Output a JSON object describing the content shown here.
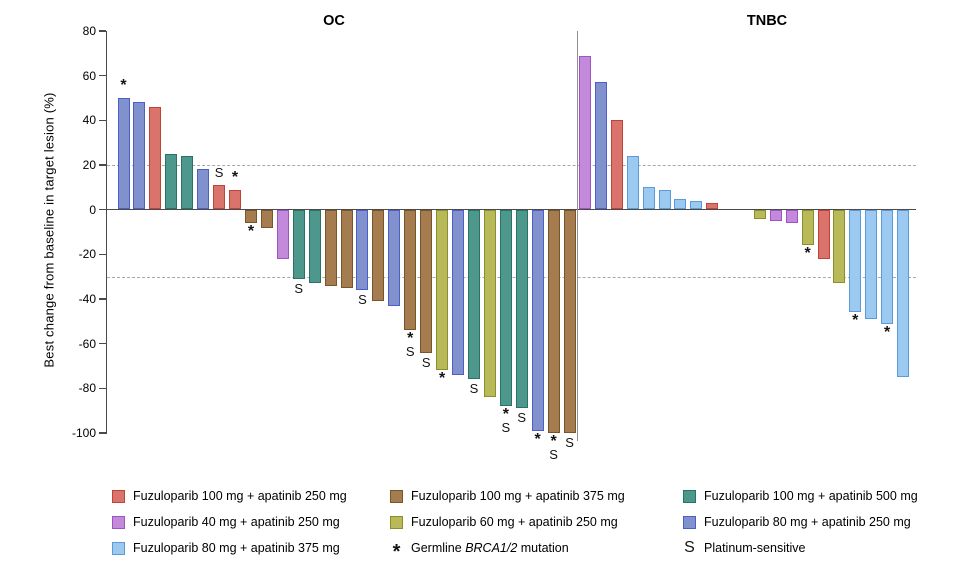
{
  "chart_data": {
    "type": "bar",
    "subtype": "waterfall",
    "title": "",
    "ylabel": "Best change from baseline in target lesion (%)",
    "ylim": [
      -100,
      80
    ],
    "yticks": [
      80,
      60,
      40,
      20,
      0,
      -20,
      -40,
      -60,
      -80,
      -100
    ],
    "reference_lines": [
      20,
      -30
    ],
    "grid": "off",
    "legend_position": "bottom",
    "groups": {
      "f100a250": {
        "label": "Fuzuloparib 100 mg + apatinib 250 mg",
        "fill": "#da736c",
        "border": "#bf4338"
      },
      "f100a375": {
        "label": "Fuzuloparib 100 mg + apatinib 375 mg",
        "fill": "#a57b50",
        "border": "#7a5527"
      },
      "f100a500": {
        "label": "Fuzuloparib 100 mg + apatinib 500 mg",
        "fill": "#4e978d",
        "border": "#2b7265"
      },
      "f40a250": {
        "label": "Fuzuloparib 40 mg + apatinib 250 mg",
        "fill": "#c389da",
        "border": "#9e54c2"
      },
      "f60a250": {
        "label": "Fuzuloparib 60 mg + apatinib 250 mg",
        "fill": "#b8b959",
        "border": "#8b8e2a"
      },
      "f80a250": {
        "label": "Fuzuloparib 80 mg + apatinib 250 mg",
        "fill": "#8091cd",
        "border": "#4d5ec6"
      },
      "f80a375": {
        "label": "Fuzuloparib 80 mg + apatinib 375 mg",
        "fill": "#9cc9ef",
        "border": "#5a9bd8"
      }
    },
    "marker_meanings": {
      "star": "Germline BRCA1/2 mutation",
      "S": "Platinum-sensitive"
    },
    "panels": [
      {
        "title": "OC",
        "bars": [
          {
            "value": 50,
            "group": "f80a250",
            "marks_above": [
              "*"
            ]
          },
          {
            "value": 48,
            "group": "f80a250"
          },
          {
            "value": 46,
            "group": "f100a250"
          },
          {
            "value": 25,
            "group": "f100a500"
          },
          {
            "value": 24,
            "group": "f100a500"
          },
          {
            "value": 18,
            "group": "f80a250"
          },
          {
            "value": 11,
            "group": "f100a250",
            "marks_above": [
              "S"
            ]
          },
          {
            "value": 9,
            "group": "f100a250",
            "marks_above": [
              "*"
            ]
          },
          {
            "value": -6,
            "group": "f100a375",
            "marks_below": [
              "*"
            ]
          },
          {
            "value": -8,
            "group": "f100a375"
          },
          {
            "value": -22,
            "group": "f40a250"
          },
          {
            "value": -31,
            "group": "f100a500",
            "marks_below": [
              "S"
            ]
          },
          {
            "value": -33,
            "group": "f100a500"
          },
          {
            "value": -34,
            "group": "f100a375"
          },
          {
            "value": -35,
            "group": "f100a375"
          },
          {
            "value": -36,
            "group": "f80a250",
            "marks_below": [
              "S"
            ]
          },
          {
            "value": -41,
            "group": "f100a375"
          },
          {
            "value": -43,
            "group": "f80a250"
          },
          {
            "value": -54,
            "group": "f100a375",
            "marks_below": [
              "*",
              "S"
            ]
          },
          {
            "value": -64,
            "group": "f100a375",
            "marks_below": [
              "S"
            ]
          },
          {
            "value": -72,
            "group": "f60a250",
            "marks_below": [
              "*"
            ]
          },
          {
            "value": -74,
            "group": "f80a250"
          },
          {
            "value": -76,
            "group": "f100a500",
            "marks_below": [
              "S"
            ]
          },
          {
            "value": -84,
            "group": "f60a250"
          },
          {
            "value": -88,
            "group": "f100a500",
            "marks_below": [
              "*",
              "S"
            ]
          },
          {
            "value": -89,
            "group": "f100a500",
            "marks_below": [
              "S"
            ]
          },
          {
            "value": -99,
            "group": "f80a250",
            "marks_below": [
              "*"
            ]
          },
          {
            "value": -100,
            "group": "f100a375",
            "marks_below": [
              "*",
              "S"
            ]
          },
          {
            "value": -100,
            "group": "f100a375",
            "marks_below": [
              "S"
            ]
          }
        ]
      },
      {
        "title": "TNBC",
        "gap_slots": 2,
        "bars": [
          {
            "value": 69,
            "group": "f40a250"
          },
          {
            "value": 57,
            "group": "f80a250"
          },
          {
            "value": 40,
            "group": "f100a250"
          },
          {
            "value": 24,
            "group": "f80a375"
          },
          {
            "value": 10,
            "group": "f80a375"
          },
          {
            "value": 9,
            "group": "f80a375"
          },
          {
            "value": 5,
            "group": "f80a375"
          },
          {
            "value": 4,
            "group": "f80a375"
          },
          {
            "value": 3,
            "group": "f100a250"
          },
          {
            "value": -4,
            "group": "f60a250",
            "gap_before": true
          },
          {
            "value": -5,
            "group": "f40a250"
          },
          {
            "value": -6,
            "group": "f40a250"
          },
          {
            "value": -16,
            "group": "f60a250",
            "marks_below": [
              "*"
            ]
          },
          {
            "value": -22,
            "group": "f100a250"
          },
          {
            "value": -33,
            "group": "f60a250"
          },
          {
            "value": -46,
            "group": "f80a375",
            "marks_below": [
              "*"
            ]
          },
          {
            "value": -49,
            "group": "f80a375"
          },
          {
            "value": -51,
            "group": "f80a375",
            "marks_below": [
              "*"
            ]
          },
          {
            "value": -75,
            "group": "f80a375"
          }
        ]
      }
    ]
  },
  "legend": {
    "items": [
      {
        "row": 0,
        "col": 0,
        "swatch": "f100a250"
      },
      {
        "row": 0,
        "col": 1,
        "swatch": "f100a375"
      },
      {
        "row": 0,
        "col": 2,
        "swatch": "f100a500"
      },
      {
        "row": 1,
        "col": 0,
        "swatch": "f40a250"
      },
      {
        "row": 1,
        "col": 1,
        "swatch": "f60a250"
      },
      {
        "row": 1,
        "col": 2,
        "swatch": "f80a250"
      },
      {
        "row": 2,
        "col": 0,
        "swatch": "f80a375"
      },
      {
        "row": 2,
        "col": 1,
        "symbol": "*",
        "label_parts": [
          "Germline ",
          "BRCA1/2",
          " mutation"
        ]
      },
      {
        "row": 2,
        "col": 2,
        "symbol": "S",
        "label": "Platinum-sensitive"
      }
    ]
  }
}
